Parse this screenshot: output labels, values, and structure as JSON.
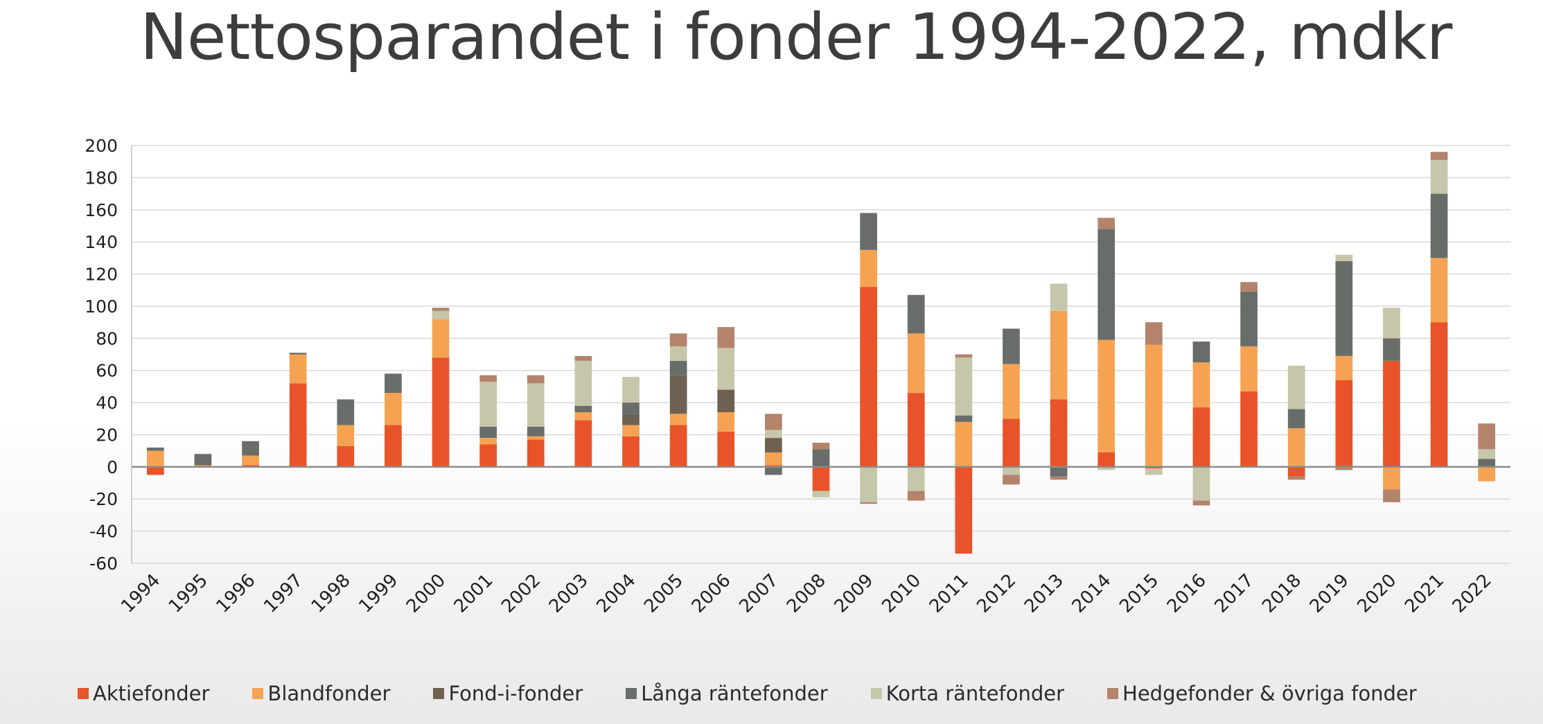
{
  "title": "Nettosparandet i fonder 1994-2022, mdkr",
  "chart_data": {
    "type": "bar",
    "stacked": true,
    "title": "Nettosparandet i fonder 1994-2022, mdkr",
    "xlabel": "",
    "ylabel": "",
    "ylim": [
      -60,
      200
    ],
    "yticks": [
      -60,
      -40,
      -20,
      0,
      20,
      40,
      60,
      80,
      100,
      120,
      140,
      160,
      180,
      200
    ],
    "grid": true,
    "legend_position": "bottom",
    "categories": [
      "1994",
      "1995",
      "1996",
      "1997",
      "1998",
      "1999",
      "2000",
      "2001",
      "2002",
      "2003",
      "2004",
      "2005",
      "2006",
      "2007",
      "2008",
      "2009",
      "2010",
      "2011",
      "2012",
      "2013",
      "2014",
      "2015",
      "2016",
      "2017",
      "2018",
      "2019",
      "2020",
      "2021",
      "2022"
    ],
    "series": [
      {
        "name": "Aktiefonder",
        "color": "#e8532a",
        "values": [
          -5,
          0,
          1,
          52,
          13,
          26,
          68,
          14,
          17,
          29,
          19,
          26,
          22,
          1,
          -15,
          112,
          46,
          -54,
          30,
          42,
          9,
          -1,
          37,
          47,
          -6,
          54,
          66,
          90,
          0
        ]
      },
      {
        "name": "Blandfonder",
        "color": "#f5a352",
        "values": [
          10,
          1,
          6,
          18,
          13,
          20,
          24,
          4,
          2,
          5,
          7,
          7,
          12,
          8,
          0,
          23,
          37,
          28,
          34,
          55,
          70,
          76,
          28,
          28,
          24,
          15,
          -14,
          40,
          -9
        ]
      },
      {
        "name": "Fond-i-fonder",
        "color": "#6e6152",
        "values": [
          0,
          0,
          0,
          0,
          0,
          0,
          0,
          0,
          0,
          0,
          7,
          24,
          14,
          9,
          0,
          0,
          0,
          0,
          0,
          0,
          0,
          0,
          0,
          0,
          0,
          0,
          0,
          0,
          0
        ]
      },
      {
        "name": "Långa räntefonder",
        "color": "#686d69",
        "values": [
          2,
          7,
          9,
          1,
          16,
          12,
          0,
          7,
          6,
          4,
          7,
          9,
          0,
          -5,
          11,
          23,
          24,
          4,
          22,
          -6,
          69,
          0,
          13,
          34,
          12,
          59,
          14,
          40,
          5
        ]
      },
      {
        "name": "Korta räntefonder",
        "color": "#c6c6aa",
        "values": [
          0,
          0,
          0,
          0,
          0,
          0,
          5,
          28,
          27,
          28,
          16,
          9,
          26,
          5,
          -4,
          -22,
          -15,
          36,
          -5,
          17,
          -2,
          -4,
          -21,
          0,
          27,
          4,
          19,
          21,
          6
        ]
      },
      {
        "name": "Hedgefonder & övriga fonder",
        "color": "#b3836b",
        "values": [
          0,
          0,
          0,
          0,
          0,
          0,
          2,
          4,
          5,
          3,
          0,
          8,
          13,
          10,
          4,
          -1,
          -6,
          2,
          -6,
          -2,
          7,
          14,
          -3,
          6,
          -2,
          -2,
          -8,
          5,
          16
        ]
      }
    ]
  },
  "legend": [
    {
      "label": "Aktiefonder",
      "color": "#e8532a"
    },
    {
      "label": "Blandfonder",
      "color": "#f5a352"
    },
    {
      "label": "Fond-i-fonder",
      "color": "#6e6152"
    },
    {
      "label": "Långa räntefonder",
      "color": "#686d69"
    },
    {
      "label": "Korta räntefonder",
      "color": "#c6c6aa"
    },
    {
      "label": "Hedgefonder & övriga fonder",
      "color": "#b3836b"
    }
  ]
}
